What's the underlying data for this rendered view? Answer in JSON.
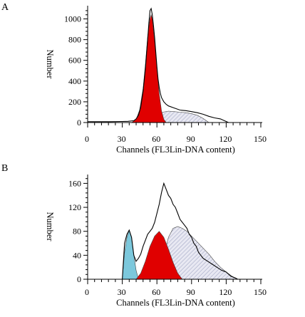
{
  "chart_data": [
    {
      "panel_label": "A",
      "type": "area",
      "xlabel": "Channels (FL3Lin-DNA content)",
      "ylabel": "Number",
      "xlim": [
        0,
        150
      ],
      "ylim": [
        0,
        1100
      ],
      "xticks": [
        0,
        30,
        60,
        90,
        120,
        150
      ],
      "yticks": [
        0,
        200,
        400,
        600,
        800,
        1000
      ],
      "series": [
        {
          "role": "histogram outline",
          "x": [
            0,
            10,
            20,
            30,
            35,
            40,
            42,
            44,
            46,
            48,
            50,
            52,
            53,
            54,
            55,
            56,
            57,
            58,
            59,
            60,
            61,
            62,
            63,
            64,
            66,
            68,
            70,
            75,
            80,
            85,
            90,
            95,
            100,
            105,
            110,
            115,
            118,
            120,
            122
          ],
          "y": [
            8,
            8,
            8,
            10,
            12,
            18,
            35,
            70,
            150,
            300,
            520,
            800,
            960,
            1080,
            1100,
            1040,
            940,
            820,
            680,
            540,
            420,
            340,
            280,
            240,
            200,
            175,
            160,
            140,
            120,
            115,
            105,
            95,
            80,
            60,
            45,
            35,
            20,
            10,
            0
          ]
        },
        {
          "role": "G0/G1 peak (red)",
          "x": [
            38,
            42,
            45,
            48,
            50,
            52,
            54,
            55,
            56,
            58,
            60,
            62,
            64,
            66,
            68
          ],
          "y": [
            0,
            30,
            120,
            330,
            560,
            830,
            1000,
            1040,
            1000,
            780,
            520,
            280,
            110,
            30,
            0
          ]
        },
        {
          "role": "S phase (hatched)",
          "x": [
            55,
            60,
            62,
            65,
            70,
            75,
            80,
            85,
            90,
            95,
            100,
            105
          ],
          "y": [
            0,
            40,
            80,
            100,
            110,
            105,
            100,
            95,
            85,
            70,
            40,
            0
          ]
        }
      ]
    },
    {
      "panel_label": "B",
      "type": "area",
      "xlabel": "Channels (FL3Lin-DNA content)",
      "ylabel": "Number",
      "xlim": [
        0,
        150
      ],
      "ylim": [
        0,
        170
      ],
      "xticks": [
        0,
        30,
        60,
        90,
        120,
        150
      ],
      "yticks": [
        0,
        40,
        80,
        120,
        160
      ],
      "series": [
        {
          "role": "histogram outline",
          "x": [
            0,
            20,
            30,
            32,
            34,
            36,
            38,
            40,
            42,
            44,
            46,
            48,
            50,
            52,
            54,
            56,
            58,
            60,
            62,
            64,
            66,
            68,
            70,
            72,
            74,
            76,
            78,
            80,
            82,
            84,
            86,
            88,
            90,
            92,
            94,
            96,
            98,
            100,
            104,
            108,
            112,
            116,
            120,
            124,
            128,
            130
          ],
          "y": [
            0,
            0,
            0,
            60,
            75,
            82,
            70,
            40,
            30,
            35,
            42,
            55,
            65,
            75,
            80,
            85,
            95,
            110,
            125,
            145,
            160,
            150,
            140,
            135,
            125,
            120,
            110,
            100,
            95,
            90,
            85,
            75,
            70,
            60,
            55,
            45,
            40,
            35,
            30,
            25,
            20,
            15,
            12,
            5,
            2,
            0
          ]
        },
        {
          "role": "sub-G1 peak (cyan)",
          "x": [
            30,
            32,
            34,
            36,
            38,
            40,
            42,
            44
          ],
          "y": [
            0,
            45,
            70,
            82,
            70,
            40,
            15,
            0
          ]
        },
        {
          "role": "G0/G1 peak (red)",
          "x": [
            42,
            46,
            50,
            54,
            58,
            62,
            66,
            70,
            74,
            78,
            82
          ],
          "y": [
            0,
            10,
            30,
            55,
            72,
            80,
            70,
            50,
            28,
            10,
            0
          ]
        },
        {
          "role": "S phase (hatched)",
          "x": [
            62,
            66,
            70,
            74,
            78,
            82,
            86,
            90,
            95,
            100,
            105,
            110,
            115,
            120,
            125,
            130
          ],
          "y": [
            0,
            40,
            70,
            85,
            88,
            85,
            80,
            72,
            62,
            52,
            42,
            30,
            20,
            12,
            5,
            0
          ]
        }
      ]
    }
  ],
  "colors": {
    "g1_peak": "#e00000",
    "subg1_peak": "#7cc8dc",
    "s_phase_fill": "#e8e8f2",
    "s_phase_hatch": "#9aa0c0",
    "outline": "#000000"
  }
}
